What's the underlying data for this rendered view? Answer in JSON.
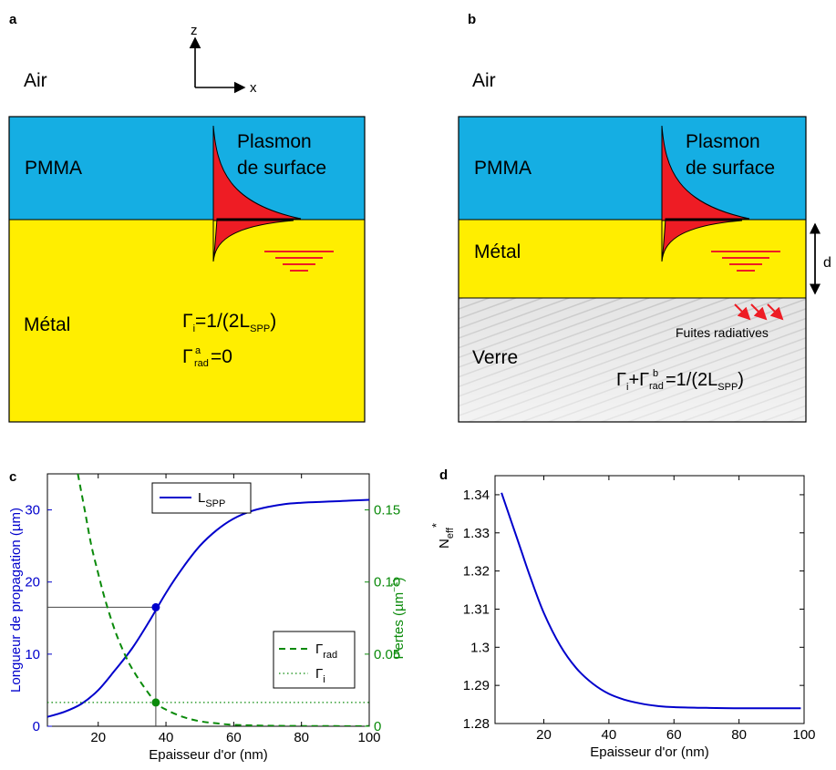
{
  "panel_a": {
    "letter": "a",
    "axis_z": "z",
    "axis_x": "x",
    "air": "Air",
    "pmma": "PMMA",
    "metal": "Métal",
    "plasmon_line1": "Plasmon",
    "plasmon_line2": "de surface",
    "gamma_i_eq": "Γ",
    "gamma_i_sub": "i",
    "gamma_i_rhs": "=1/(2L",
    "gamma_i_rhs_sub": "SPP",
    "gamma_i_close": ")",
    "gamma_rad_sym": "Γ",
    "gamma_rad_sup": "a",
    "gamma_rad_sub": "rad",
    "gamma_rad_rhs": "=0"
  },
  "panel_b": {
    "letter": "b",
    "air": "Air",
    "pmma": "PMMA",
    "metal": "Métal",
    "glass": "Verre",
    "plasmon_line1": "Plasmon",
    "plasmon_line2": "de surface",
    "d_label": "d",
    "leak_label": "Fuites radiatives",
    "eq_g1": "Γ",
    "eq_g1_sub": "i",
    "eq_plus": "+Γ",
    "eq_sup": "b",
    "eq_sub": "rad",
    "eq_rhs": "=1/(2L",
    "eq_rhs_sub": "SPP",
    "eq_close": ")"
  },
  "colors": {
    "pmma": "#15aee3",
    "metal": "#ffee00",
    "plasmon": "#ee1c24",
    "blue_curve": "#0000cc",
    "green_curve": "#0a8a0a"
  },
  "chart_data": [
    {
      "panel": "c",
      "type": "line",
      "xlabel": "Epaisseur d'or (nm)",
      "ylabel": "Longueur de propagation (µm)",
      "y2label": "Pertes (µm",
      "y2label_sup": "−1",
      "y2label_close": ")",
      "xlim": [
        5,
        100
      ],
      "ylim": [
        0,
        35
      ],
      "y2lim": [
        0,
        0.175
      ],
      "xticks": [
        20,
        40,
        60,
        80,
        100
      ],
      "yticks": [
        0,
        10,
        20,
        30
      ],
      "y2ticks": [
        0,
        0.05,
        0.1,
        0.15
      ],
      "y2ticklabels": [
        "0",
        "0.05",
        "0.10",
        "0.15"
      ],
      "legend_top": {
        "sym": "L",
        "sub": "SPP"
      },
      "legend_bottom": [
        {
          "sym": "Γ",
          "sub": "rad"
        },
        {
          "sym": "Γ",
          "sub": "i"
        }
      ],
      "series": [
        {
          "key": "L_SPP",
          "axis": "left",
          "style": "solid",
          "x": [
            5,
            10,
            15,
            20,
            25,
            30,
            35,
            40,
            45,
            50,
            55,
            60,
            65,
            70,
            75,
            80,
            85,
            90,
            95,
            100
          ],
          "y": [
            1.3,
            2.0,
            3.1,
            5.0,
            7.8,
            10.8,
            14.5,
            18.5,
            22.0,
            25.0,
            27.2,
            28.8,
            29.8,
            30.4,
            30.8,
            31.0,
            31.1,
            31.2,
            31.3,
            31.4
          ]
        },
        {
          "key": "Gamma_rad",
          "axis": "right",
          "style": "dashed",
          "x": [
            14,
            16,
            18,
            20,
            22,
            25,
            28,
            30,
            33,
            37,
            40,
            45,
            50,
            55,
            60,
            70,
            80,
            90,
            100
          ],
          "y": [
            0.175,
            0.15,
            0.125,
            0.106,
            0.088,
            0.066,
            0.049,
            0.04,
            0.029,
            0.0165,
            0.0115,
            0.0065,
            0.0035,
            0.002,
            0.001,
            0.0004,
            0.0002,
            0.0001,
            0.0001
          ]
        },
        {
          "key": "Gamma_i",
          "axis": "right",
          "style": "dotted",
          "x": [
            5,
            100
          ],
          "y": [
            0.0165,
            0.0165
          ]
        }
      ],
      "markers": [
        {
          "x": 37,
          "y": 16.5,
          "axis": "left",
          "color": "blue"
        },
        {
          "x": 37,
          "y": 0.0165,
          "axis": "right",
          "color": "green"
        }
      ],
      "guide": {
        "x": 37,
        "y": 16.5
      }
    },
    {
      "panel": "d",
      "type": "line",
      "xlabel": "Epaisseur d'or (nm)",
      "ylabel": "N",
      "ylabel_sub": "eff",
      "ylabel_sup": "*",
      "xlim": [
        5,
        100
      ],
      "ylim": [
        1.28,
        1.345
      ],
      "xticks": [
        20,
        40,
        60,
        80,
        100
      ],
      "yticks": [
        1.28,
        1.29,
        1.3,
        1.31,
        1.32,
        1.33,
        1.34
      ],
      "yticklabels": [
        "1.28",
        "1.29",
        "1.3",
        "1.31",
        "1.32",
        "1.33",
        "1.34"
      ],
      "series": [
        {
          "key": "N_eff",
          "x": [
            7,
            10,
            13,
            16,
            20,
            25,
            30,
            35,
            40,
            45,
            50,
            55,
            60,
            70,
            80,
            90,
            99
          ],
          "y": [
            1.3405,
            1.333,
            1.3255,
            1.318,
            1.309,
            1.3005,
            1.2945,
            1.2905,
            1.2878,
            1.2862,
            1.2852,
            1.2846,
            1.2843,
            1.2841,
            1.284,
            1.284,
            1.284
          ]
        }
      ]
    }
  ]
}
